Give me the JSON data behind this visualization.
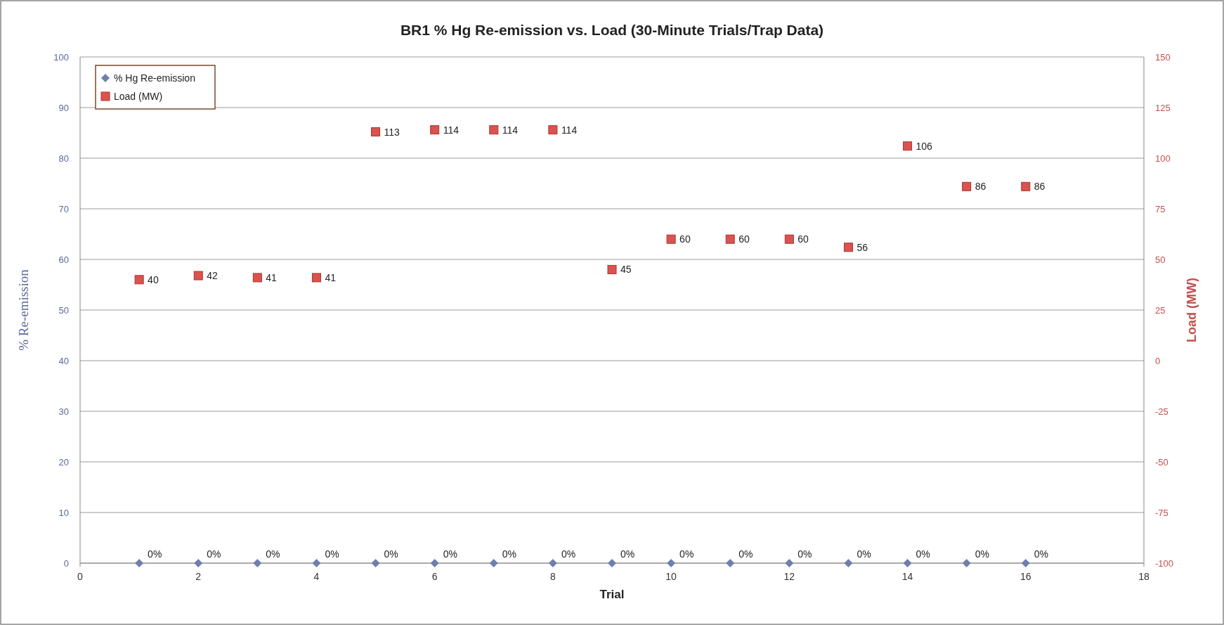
{
  "chart_data": {
    "type": "scatter",
    "title": "BR1 % Hg Re-emission vs. Load (30-Minute Trials/Trap Data)",
    "xlabel": "Trial",
    "ylabel": "% Re-emission",
    "y2label": "Load (MW)",
    "x": [
      1,
      2,
      3,
      4,
      5,
      6,
      7,
      8,
      9,
      10,
      11,
      12,
      13,
      14,
      15,
      16
    ],
    "xlim": [
      0,
      18
    ],
    "xticks": [
      0,
      2,
      4,
      6,
      8,
      10,
      12,
      14,
      16,
      18
    ],
    "ylim": [
      0,
      100
    ],
    "yticks": [
      0,
      10,
      20,
      30,
      40,
      50,
      60,
      70,
      80,
      90,
      100
    ],
    "y2lim": [
      -100,
      150
    ],
    "y2ticks": [
      -100,
      -75,
      -50,
      -25,
      0,
      25,
      50,
      75,
      100,
      125,
      150
    ],
    "grid": "y",
    "legend": "top left",
    "series": [
      {
        "name": "% Hg Re-emission",
        "color": "#6e7fae",
        "marker": "diamond",
        "values": [
          0,
          0,
          0,
          0,
          0,
          0,
          0,
          0,
          0,
          0,
          0,
          0,
          0,
          0,
          0,
          0
        ],
        "value_labels": [
          "0%",
          "0%",
          "0%",
          "0%",
          "0%",
          "0%",
          "0%",
          "0%",
          "0%",
          "0%",
          "0%",
          "0%",
          "0%",
          "0%",
          "0%",
          "0%"
        ]
      },
      {
        "name": "Load (MW)",
        "color": "#d9534f",
        "marker": "square",
        "axis": "y2",
        "values": [
          40,
          42,
          41,
          41,
          113,
          114,
          114,
          114,
          45,
          60,
          60,
          60,
          56,
          106,
          86,
          86
        ],
        "value_labels": [
          "40",
          "42",
          "41",
          "41",
          "113",
          "114",
          "114",
          "114",
          "45",
          "60",
          "60",
          "60",
          "56",
          "106",
          "86",
          "86"
        ]
      }
    ]
  }
}
